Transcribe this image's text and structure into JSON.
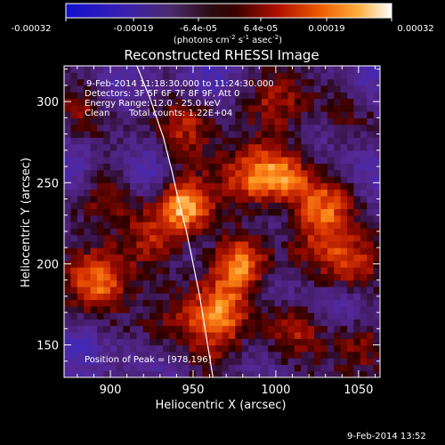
{
  "colorbar": {
    "tick_labels": [
      "-0.00032",
      "-0.00019",
      "-6.4e-05",
      "6.4e-05",
      "0.00019",
      "0.00032"
    ],
    "min": -0.00032,
    "max": 0.00032,
    "units": {
      "prefix": "(photons cm",
      "exp1": "-2",
      "mid1": " s",
      "exp2": "-1",
      "mid2": " asec",
      "exp3": "-2",
      "suffix": ")"
    }
  },
  "annotations": {
    "time_range": "9-Feb-2014 11:18:30.000 to 11:24:30.000",
    "detectors": "Detectors: 3F 5F 6F 7F 8F 9F, Att 0",
    "energy": "Energy Range: 12.0 - 25.0 keV",
    "clean_label": "Clean",
    "total_counts": "Total counts: 1.22E+04",
    "peak": "Position of Peak = [978,196]"
  },
  "footer": {
    "timestamp": "9-Feb-2014 13:52"
  },
  "colors": {
    "background": "#000000",
    "foreground": "#ffffff",
    "limb": "#ffffff"
  },
  "chart_data": {
    "type": "heatmap",
    "title": "Reconstructed RHESSI Image",
    "xlabel": "Heliocentric X (arcsec)",
    "ylabel": "Heliocentric Y (arcsec)",
    "xlim": [
      872,
      1063
    ],
    "ylim": [
      130,
      322
    ],
    "x_ticks": [
      900,
      950,
      1000,
      1050
    ],
    "y_ticks": [
      150,
      200,
      250,
      300
    ],
    "peak_position": [
      978,
      196
    ],
    "limb_curve": {
      "x": [
        916,
        924,
        932,
        937,
        941,
        946,
        950,
        954,
        958,
        962
      ],
      "y": [
        322,
        302,
        278,
        258,
        240,
        220,
        200,
        180,
        155,
        130
      ]
    },
    "sources": [
      {
        "x": 945,
        "y": 236,
        "value": 0.00032
      },
      {
        "x": 978,
        "y": 200,
        "value": 0.00029
      },
      {
        "x": 892,
        "y": 190,
        "value": 0.00026
      },
      {
        "x": 965,
        "y": 170,
        "value": 0.00025
      },
      {
        "x": 1030,
        "y": 235,
        "value": 0.00023
      },
      {
        "x": 1005,
        "y": 255,
        "value": 0.00022
      },
      {
        "x": 1045,
        "y": 200,
        "value": 0.0002
      },
      {
        "x": 985,
        "y": 255,
        "value": 0.00019
      },
      {
        "x": 1010,
        "y": 160,
        "value": 0.00017
      },
      {
        "x": 900,
        "y": 245,
        "value": 0.00016
      },
      {
        "x": 945,
        "y": 285,
        "value": 0.00016
      },
      {
        "x": 1000,
        "y": 300,
        "value": 0.00014
      },
      {
        "x": 925,
        "y": 215,
        "value": 0.00013
      },
      {
        "x": 885,
        "y": 295,
        "value": 0.00012
      },
      {
        "x": 1050,
        "y": 150,
        "value": 0.00011
      },
      {
        "x": 935,
        "y": 160,
        "value": 0.0001
      },
      {
        "x": 1040,
        "y": 290,
        "value": 9e-05
      },
      {
        "x": 1020,
        "y": 210,
        "value": 0.0001
      },
      {
        "x": 962,
        "y": 145,
        "value": 9e-05
      },
      {
        "x": 880,
        "y": 145,
        "value": -0.00014
      },
      {
        "x": 920,
        "y": 255,
        "value": -0.00016
      },
      {
        "x": 875,
        "y": 260,
        "value": -0.00015
      },
      {
        "x": 955,
        "y": 210,
        "value": -8e-05
      },
      {
        "x": 1040,
        "y": 175,
        "value": -0.00013
      },
      {
        "x": 1000,
        "y": 185,
        "value": -0.0001
      },
      {
        "x": 1060,
        "y": 255,
        "value": -0.00012
      },
      {
        "x": 960,
        "y": 315,
        "value": -0.00014
      },
      {
        "x": 905,
        "y": 310,
        "value": -0.00013
      },
      {
        "x": 930,
        "y": 140,
        "value": -0.0001
      },
      {
        "x": 1025,
        "y": 275,
        "value": -9e-05
      },
      {
        "x": 990,
        "y": 140,
        "value": -8e-05
      },
      {
        "x": 1000,
        "y": 225,
        "value": -6e-05
      },
      {
        "x": 1060,
        "y": 315,
        "value": -0.00011
      }
    ],
    "background_value": -5e-05
  }
}
